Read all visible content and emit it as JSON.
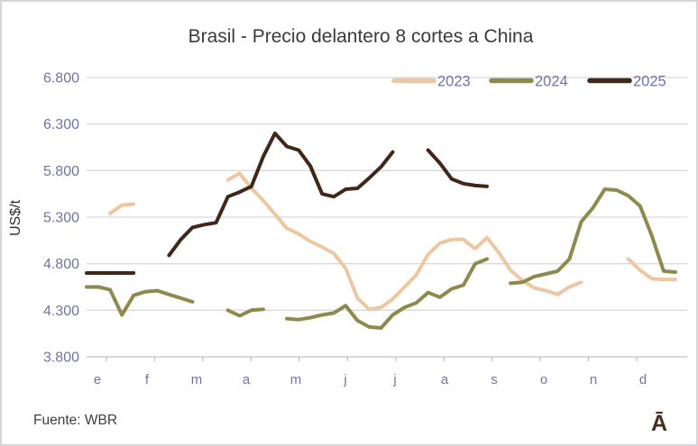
{
  "header": {
    "title": "Brasil - Precio delantero 8 cortes a China"
  },
  "footer": {
    "source": "Fuente: WBR",
    "logo": "Ā"
  },
  "colors": {
    "series_2023": "#ecc7a1",
    "series_2024": "#8e8a4e",
    "series_2025": "#40271a",
    "axis_text": "#7272aa",
    "grid_line": "#d9d9d9",
    "axis_line": "#c4c1c4",
    "title_text": "#3a3a3a",
    "logo_brown": "#4a2d1b",
    "frame_border": "#d8d4d8"
  },
  "chart_data": {
    "type": "line",
    "title": "Brasil - Precio delantero 8 cortes a China",
    "xlabel": "",
    "ylabel": "US$/t",
    "x_unit": "weeks 1-52 (weekly forward prices, gaps = no quote)",
    "ylim": [
      3800,
      6800
    ],
    "yticks": [
      3800,
      4300,
      4800,
      5300,
      5800,
      6300,
      6800
    ],
    "ytick_labels": [
      "3.800",
      "4.300",
      "4.800",
      "5.300",
      "5.800",
      "6.300",
      "6.800"
    ],
    "xtick_labels": [
      "e",
      "f",
      "m",
      "a",
      "m",
      "j",
      "j",
      "a",
      "s",
      "o",
      "n",
      "d"
    ],
    "grid": "horizontal",
    "legend_position": "top-right-inside",
    "series": [
      {
        "name": "2023",
        "color": "#ecc7a1",
        "values": [
          null,
          null,
          5340,
          5430,
          5440,
          null,
          null,
          null,
          null,
          null,
          null,
          null,
          5700,
          5770,
          5610,
          5480,
          5330,
          5180,
          5120,
          5040,
          4980,
          4910,
          4750,
          4430,
          4310,
          4330,
          4420,
          4550,
          4680,
          4900,
          5020,
          5060,
          5060,
          4960,
          5080,
          4920,
          4730,
          4620,
          4540,
          4510,
          4470,
          4550,
          4600,
          null,
          null,
          null,
          4850,
          4730,
          4640,
          4630,
          4630,
          null
        ]
      },
      {
        "name": "2024",
        "color": "#8e8a4e",
        "values": [
          4550,
          4550,
          4520,
          4250,
          4460,
          4500,
          4510,
          4470,
          4430,
          4390,
          null,
          null,
          4300,
          4240,
          4300,
          4310,
          null,
          4210,
          4200,
          4220,
          4250,
          4270,
          4350,
          4190,
          4120,
          4110,
          4250,
          4330,
          4380,
          4490,
          4440,
          4530,
          4570,
          4800,
          4850,
          null,
          4590,
          4600,
          4660,
          4690,
          4720,
          4850,
          5250,
          5400,
          5600,
          5590,
          5530,
          5420,
          5100,
          4720,
          4710,
          null
        ]
      },
      {
        "name": "2025",
        "color": "#40271a",
        "values": [
          4700,
          4700,
          4700,
          4700,
          4700,
          null,
          null,
          4890,
          5060,
          5190,
          5220,
          5240,
          5520,
          5570,
          5630,
          5950,
          6200,
          6060,
          6020,
          5850,
          5550,
          5520,
          5600,
          5610,
          5720,
          5840,
          6000,
          null,
          null,
          6020,
          5880,
          5710,
          5660,
          5640,
          5630,
          null,
          null,
          null,
          null,
          null,
          null,
          null,
          null,
          null,
          null,
          null,
          null,
          null,
          null,
          null,
          null,
          null
        ]
      }
    ]
  }
}
